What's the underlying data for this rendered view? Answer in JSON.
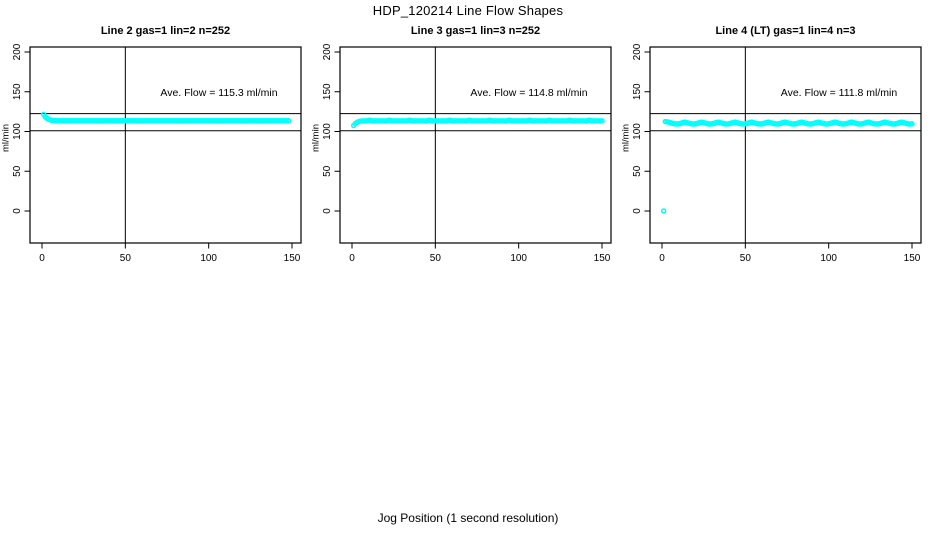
{
  "chart_data": {
    "type": "scatter",
    "title": "HDP_120214  Line Flow Shapes",
    "xlabel": "Jog Position (1 second resolution)",
    "ylabel": "ml/min",
    "marker": "open-circle",
    "point_color": "#00ffff",
    "line_color": "#000000",
    "grid": false,
    "legend": "none",
    "x_ticks": [
      0,
      50,
      100,
      150
    ],
    "y_ticks": [
      0,
      50,
      100,
      150,
      200
    ],
    "xlim": [
      0,
      155
    ],
    "ylim": [
      -40,
      207
    ],
    "reference_hlines": [
      122.5,
      101
    ],
    "reference_vline": 50,
    "panels": [
      {
        "title": "Line 2 gas=1 lin=2 n=252",
        "ave_flow": 115.3,
        "ave_flow_label": "Ave. Flow =  115.3  ml/min",
        "x_start": 1,
        "x_step": 1,
        "y": [
          121.5,
          118.5,
          116.5,
          115.5,
          114.5,
          114,
          114,
          113.8,
          113.5,
          113.5,
          113.5,
          113.5,
          113.5,
          113.5,
          113.5,
          113.5,
          113.5,
          113.5,
          113.5,
          113.5,
          113.5,
          113.5,
          113.5,
          113.5,
          113.5,
          113.5,
          113.5,
          113.5,
          113.5,
          113.5,
          113.5,
          113.5,
          113.5,
          113.5,
          113.5,
          113.5,
          113.5,
          113.5,
          113.5,
          113.5,
          113.5,
          113.5,
          113.5,
          113.5,
          113.5,
          113.5,
          113.5,
          113.5,
          113.5,
          113.5,
          113.5,
          113.5,
          113.5,
          113.5,
          113.5,
          113.5,
          113.5,
          113.5,
          113.5,
          113.5,
          113.5,
          113.5,
          113.5,
          113.5,
          113.5,
          113.5,
          113.5,
          113.5,
          113.5,
          113.5,
          113.5,
          113.5,
          113.5,
          113.5,
          113.5,
          113.5,
          113.5,
          113.5,
          113.5,
          113.5,
          113.5,
          113.5,
          113.5,
          113.5,
          113.5,
          113.5,
          113.5,
          113.5,
          113.5,
          113.5,
          113.5,
          113.5,
          113.5,
          113.5,
          113.5,
          113.5,
          113.5,
          113.5,
          113.5,
          113.5,
          113.5,
          113.5,
          113.5,
          113.5,
          113.5,
          113.5,
          113.5,
          113.5,
          113.5,
          113.5,
          113.5,
          113.5,
          113.5,
          113.5,
          113.5,
          113.5,
          113.5,
          113.5,
          113.5,
          113.5,
          113.5,
          113.5,
          113.5,
          113.5,
          113.5,
          113.5,
          113.5,
          113.5,
          113.5,
          113.5,
          113.5,
          113.5,
          113.5,
          113.5,
          113.5,
          113.5,
          113.5,
          113.5,
          113.5,
          113.5,
          113.5,
          113.5,
          113.5,
          113.5,
          113.5,
          113.5,
          113.5,
          113.5
        ]
      },
      {
        "title": "Line 3 gas=1 lin=3 n=252",
        "ave_flow": 114.8,
        "ave_flow_label": "Ave. Flow =  114.8  ml/min",
        "x_start": 1,
        "x_step": 1,
        "y": [
          107.5,
          110,
          111.5,
          112.5,
          113,
          113.2,
          113.4,
          113.4,
          113.4,
          114.2,
          114.2,
          113.4,
          113.4,
          113.4,
          113.4,
          113.4,
          113.4,
          113.4,
          113.4,
          113.4,
          113.4,
          114.2,
          114.2,
          113.4,
          113.4,
          113.4,
          113.4,
          113.4,
          113.4,
          113.4,
          113.4,
          113.4,
          113.4,
          114.2,
          114.2,
          113.4,
          113.4,
          113.4,
          113.4,
          113.4,
          113.4,
          113.4,
          113.4,
          113.4,
          113.4,
          114.2,
          114.2,
          113.4,
          113.4,
          113.4,
          113.4,
          113.4,
          113.4,
          113.4,
          113.4,
          113.4,
          113.4,
          114.2,
          114.2,
          113.4,
          113.4,
          113.4,
          113.4,
          113.4,
          113.4,
          113.4,
          113.4,
          113.4,
          113.4,
          114.2,
          114.2,
          113.4,
          113.4,
          113.4,
          113.4,
          113.4,
          113.4,
          113.4,
          113.4,
          113.4,
          113.4,
          114.2,
          114.2,
          113.4,
          113.4,
          113.4,
          113.4,
          113.4,
          113.4,
          113.4,
          113.4,
          113.4,
          113.4,
          114.2,
          114.2,
          113.4,
          113.4,
          113.4,
          113.4,
          113.4,
          113.4,
          113.4,
          113.4,
          113.4,
          113.4,
          114.2,
          114.2,
          113.4,
          113.4,
          113.4,
          113.4,
          113.4,
          113.4,
          113.4,
          113.4,
          113.4,
          113.4,
          114.2,
          114.2,
          113.4,
          113.4,
          113.4,
          113.4,
          113.4,
          113.4,
          113.4,
          113.4,
          113.4,
          113.4,
          114.2,
          114.2,
          113.4,
          113.4,
          113.4,
          113.4,
          113.4,
          113.4,
          113.4,
          113.4,
          113.4,
          113.4,
          114.2,
          114.2,
          113.4,
          113.4,
          113.4,
          113.4,
          113.4,
          113.4,
          113.4
        ]
      },
      {
        "title": "Line 4 (LT) gas=1 lin=4 n=3",
        "ave_flow": 111.8,
        "ave_flow_label": "Ave. Flow =  111.8  ml/min",
        "x_start": 1,
        "x_step": 1,
        "y": [
          0,
          112.5,
          112.2,
          111.8,
          111.2,
          110.6,
          110,
          109.6,
          109.4,
          109.7,
          110.2,
          110.8,
          111.4,
          111.8,
          111.2,
          110.6,
          110,
          109.6,
          109.4,
          109.7,
          110.2,
          110.8,
          111.4,
          111.8,
          111.2,
          110.6,
          110,
          109.6,
          109.4,
          109.7,
          110.2,
          110.8,
          111.4,
          111.8,
          111.2,
          110.6,
          110,
          109.6,
          109.4,
          109.7,
          110.2,
          110.8,
          111.4,
          111.8,
          111.2,
          110.6,
          110,
          109.6,
          109.4,
          109.7,
          110.2,
          110.8,
          111.4,
          111.8,
          111.2,
          110.6,
          110,
          109.6,
          109.4,
          109.7,
          110.2,
          110.8,
          111.4,
          111.8,
          111.2,
          110.6,
          110,
          109.6,
          109.4,
          109.7,
          110.2,
          110.8,
          111.4,
          111.8,
          111.2,
          110.6,
          110,
          109.6,
          109.4,
          109.7,
          110.2,
          110.8,
          111.4,
          111.8,
          111.2,
          110.6,
          110,
          109.6,
          109.4,
          109.7,
          110.2,
          110.8,
          111.4,
          111.8,
          111.2,
          110.6,
          110,
          109.6,
          109.4,
          109.7,
          110.2,
          110.8,
          111.4,
          111.8,
          111.2,
          110.6,
          110,
          109.6,
          109.4,
          109.7,
          110.2,
          110.8,
          111.4,
          111.8,
          111.2,
          110.6,
          110,
          109.6,
          109.4,
          109.7,
          110.2,
          110.8,
          111.4,
          111.8,
          111.2,
          110.6,
          110,
          109.6,
          109.4,
          109.7,
          110.2,
          110.8,
          111.4,
          111.8,
          111.2,
          110.6,
          110,
          109.6,
          109.4,
          109.7,
          110.2,
          110.8,
          111.4,
          111.8,
          111.2,
          110.6,
          110,
          109.6,
          109.4,
          109.7
        ]
      }
    ]
  }
}
